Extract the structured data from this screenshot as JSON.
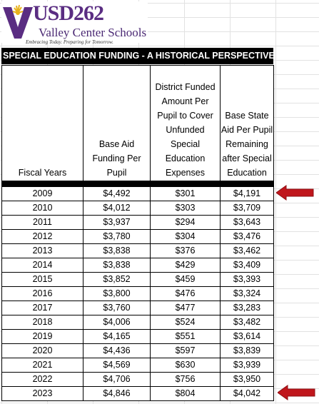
{
  "logo": {
    "name": "USD262",
    "subtitle": "Valley Center Schools",
    "tagline": "Embracing Today. Preparing for Tomorrow."
  },
  "title": "SPECIAL EDUCATION FUNDING - A HISTORICAL PERSPECTIVE",
  "columns": [
    "Fiscal Years",
    "Base Aid Funding Per Pupil",
    "District Funded Amount Per Pupil to Cover Unfunded Special Education Expenses",
    "Base State Aid Per Pupil Remaining after Special Education"
  ],
  "rows": [
    [
      "2009",
      "$4,492",
      "$301",
      "$4,191"
    ],
    [
      "2010",
      "$4,012",
      "$303",
      "$3,709"
    ],
    [
      "2011",
      "$3,937",
      "$294",
      "$3,643"
    ],
    [
      "2012",
      "$3,780",
      "$304",
      "$3,476"
    ],
    [
      "2013",
      "$3,838",
      "$376",
      "$3,462"
    ],
    [
      "2014",
      "$3,838",
      "$429",
      "$3,409"
    ],
    [
      "2015",
      "$3,852",
      "$459",
      "$3,393"
    ],
    [
      "2016",
      "$3,800",
      "$476",
      "$3,324"
    ],
    [
      "2017",
      "$3,760",
      "$477",
      "$3,283"
    ],
    [
      "2018",
      "$4,006",
      "$524",
      "$3,482"
    ],
    [
      "2019",
      "$4,165",
      "$551",
      "$3,614"
    ],
    [
      "2020",
      "$4,436",
      "$597",
      "$3,839"
    ],
    [
      "2021",
      "$4,569",
      "$630",
      "$3,939"
    ],
    [
      "2022",
      "$4,706",
      "$756",
      "$3,950"
    ],
    [
      "2023",
      "$4,846",
      "$804",
      "$4,042"
    ]
  ],
  "colors": {
    "brand_purple": "#5a2d82",
    "arrow_red": "#c0161c",
    "header_black": "#000000"
  },
  "icons": [
    "school-logo-icon",
    "arrow-left-icon"
  ]
}
